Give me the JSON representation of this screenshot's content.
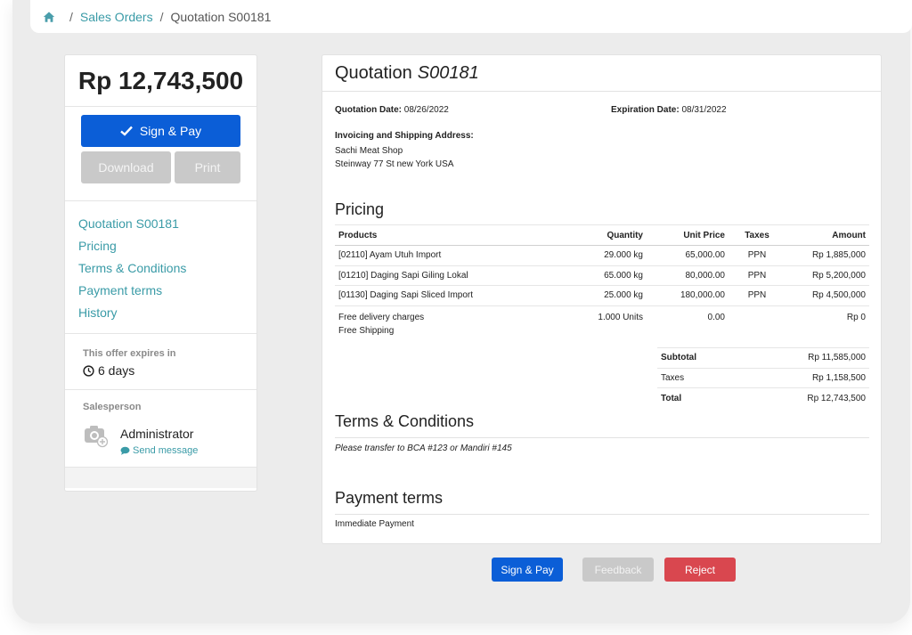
{
  "breadcrumb": {
    "sales_orders": "Sales Orders",
    "separator": "/",
    "current": "Quotation S00181"
  },
  "sidebar": {
    "amount": "Rp 12,743,500",
    "sign_pay": "Sign & Pay",
    "download": "Download",
    "print": "Print",
    "nav": [
      "Quotation S00181",
      "Pricing",
      "Terms & Conditions",
      "Payment terms",
      "History"
    ],
    "expires_label": "This offer expires in",
    "expires_value": "6 days",
    "salesperson_label": "Salesperson",
    "salesperson_name": "Administrator",
    "send_message": "Send message"
  },
  "document": {
    "title_prefix": "Quotation",
    "title_number": "S00181",
    "quotation_date_label": "Quotation Date:",
    "quotation_date": "08/26/2022",
    "expiration_date_label": "Expiration Date:",
    "expiration_date": "08/31/2022",
    "address_label": "Invoicing and Shipping Address:",
    "address_line1": "Sachi Meat Shop",
    "address_line2": "Steinway 77 St new York USA",
    "pricing_title": "Pricing",
    "columns": [
      "Products",
      "Quantity",
      "Unit Price",
      "Taxes",
      "Amount"
    ],
    "rows": [
      {
        "product": "[02110] Ayam Utuh Import",
        "qty": "29.000 kg",
        "price": "65,000.00",
        "tax": "PPN",
        "amount": "Rp 1,885,000"
      },
      {
        "product": "[01210] Daging Sapi Giling Lokal",
        "qty": "65.000 kg",
        "price": "80,000.00",
        "tax": "PPN",
        "amount": "Rp 5,200,000"
      },
      {
        "product": "[01130] Daging Sapi Sliced Import",
        "qty": "25.000 kg",
        "price": "180,000.00",
        "tax": "PPN",
        "amount": "Rp 4,500,000"
      }
    ],
    "delivery": {
      "line1": "Free delivery charges",
      "line2": "Free Shipping",
      "qty": "1.000 Units",
      "price": "0.00",
      "tax": "",
      "amount": "Rp 0"
    },
    "subtotal_label": "Subtotal",
    "subtotal": "Rp 11,585,000",
    "taxes_label": "Taxes",
    "taxes": "Rp 1,158,500",
    "total_label": "Total",
    "total": "Rp 12,743,500",
    "terms_title": "Terms & Conditions",
    "terms_text": "Please transfer to BCA #123 or Mandiri #145",
    "payment_title": "Payment terms",
    "payment_text": "Immediate Payment"
  },
  "actions": {
    "sign_pay": "Sign & Pay",
    "feedback": "Feedback",
    "reject": "Reject"
  },
  "colors": {
    "primary": "#0b5ed7",
    "link": "#3a9ba7",
    "danger": "#d9474f",
    "disabled": "#c9c9c9"
  }
}
